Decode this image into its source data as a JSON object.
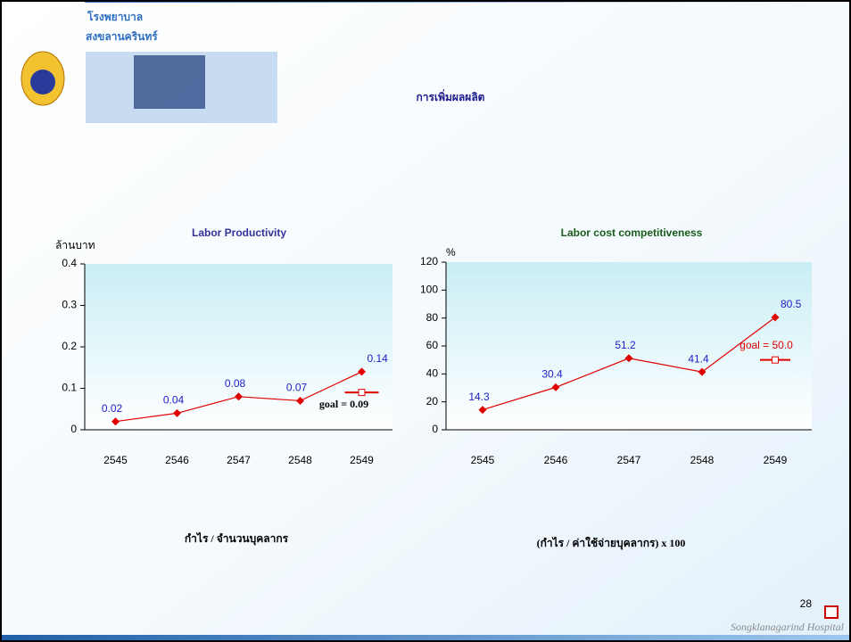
{
  "slide": {
    "logo_line1": "โรงพยาบาล",
    "logo_line2": "สงขลานครินทร์",
    "title": "การเพิ่มผลผลิต",
    "formula_left": "กำไร / จำนวนบุคลากร",
    "formula_right": "(กำไร / ค่าใช้จ่ายบุคลากร) x 100",
    "page_number": "28",
    "footer": "Songklanagarind Hospital"
  },
  "chart_data": [
    {
      "type": "line",
      "title": "Labor Productivity",
      "y_label": "ล้านบาท",
      "categories": [
        "2545",
        "2546",
        "2547",
        "2548",
        "2549"
      ],
      "values": [
        0.02,
        0.04,
        0.08,
        0.07,
        0.14
      ],
      "color": "#e00000",
      "ylim": [
        0,
        0.4
      ],
      "yticks": [
        0,
        0.1,
        0.2,
        0.3,
        0.4
      ],
      "goal": {
        "value": 0.09,
        "label": "goal = 0.09"
      }
    },
    {
      "type": "line",
      "title": "Labor cost competitiveness",
      "y_label": "%",
      "categories": [
        "2545",
        "2546",
        "2547",
        "2548",
        "2549"
      ],
      "values": [
        14.3,
        30.4,
        51.2,
        41.4,
        80.5
      ],
      "color": "#e00000",
      "ylim": [
        0,
        120
      ],
      "yticks": [
        0,
        20,
        40,
        60,
        80,
        100,
        120
      ],
      "goal": {
        "value": 50,
        "label": "goal = 50.0"
      }
    }
  ]
}
